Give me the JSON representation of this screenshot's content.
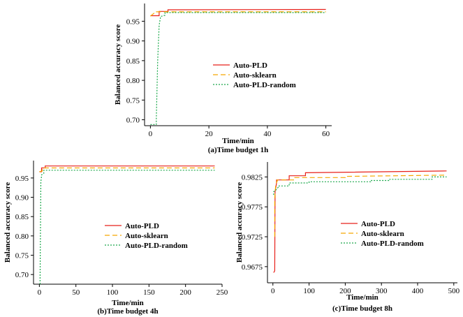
{
  "colors": {
    "Auto-PLD": "#e8201a",
    "Auto-sklearn": "#f5a800",
    "Auto-PLD-random": "#1aa84a"
  },
  "chart_data": [
    {
      "type": "line",
      "caption": "(a)Time budget 1h",
      "xlabel": "Time/min",
      "ylabel": "Balanced accuracy score",
      "xlim": [
        -2,
        62
      ],
      "ylim": [
        0.685,
        0.995
      ],
      "xticks": [
        0,
        20,
        40,
        60
      ],
      "yticks": [
        0.7,
        0.75,
        0.8,
        0.85,
        0.9,
        0.95
      ],
      "ytick_labels": [
        "0.70",
        "0.75",
        "0.80",
        "0.85",
        "0.90",
        "0.95"
      ],
      "legend": [
        "Auto-PLD",
        "Auto-sklearn",
        "Auto-PLD-random"
      ],
      "series": [
        {
          "name": "Auto-PLD",
          "style": "solid",
          "x": [
            0,
            3,
            3,
            6,
            6,
            60
          ],
          "y": [
            0.964,
            0.964,
            0.975,
            0.975,
            0.979,
            0.98
          ]
        },
        {
          "name": "Auto-sklearn",
          "style": "dashed",
          "x": [
            0,
            1.5,
            1.5,
            60
          ],
          "y": [
            0.963,
            0.972,
            0.974,
            0.974
          ]
        },
        {
          "name": "Auto-PLD-random",
          "style": "dotted",
          "x": [
            0,
            2,
            2,
            2.5,
            3,
            3.5,
            5,
            5,
            60
          ],
          "y": [
            0.688,
            0.688,
            0.7,
            0.85,
            0.94,
            0.962,
            0.965,
            0.972,
            0.972
          ]
        }
      ]
    },
    {
      "type": "line",
      "caption": "(b)Time budget 4h",
      "xlabel": "Time/min",
      "ylabel": "Balanced accuracy score",
      "xlim": [
        -8,
        250
      ],
      "ylim": [
        0.675,
        0.995
      ],
      "xticks": [
        0,
        50,
        100,
        150,
        200,
        250
      ],
      "yticks": [
        0.7,
        0.75,
        0.8,
        0.85,
        0.9,
        0.95
      ],
      "ytick_labels": [
        "0.70",
        "0.75",
        "0.80",
        "0.85",
        "0.90",
        "0.95"
      ],
      "legend": [
        "Auto-PLD",
        "Auto-sklearn",
        "Auto-PLD-random"
      ],
      "series": [
        {
          "name": "Auto-PLD",
          "style": "solid",
          "x": [
            0,
            3,
            3,
            8,
            8,
            240
          ],
          "y": [
            0.966,
            0.966,
            0.976,
            0.976,
            0.981,
            0.981
          ]
        },
        {
          "name": "Auto-sklearn",
          "style": "dashed",
          "x": [
            0,
            4,
            4,
            240
          ],
          "y": [
            0.966,
            0.968,
            0.976,
            0.976
          ]
        },
        {
          "name": "Auto-PLD-random",
          "style": "dotted",
          "x": [
            1,
            1,
            2,
            3,
            3,
            6,
            6,
            240
          ],
          "y": [
            0.675,
            0.69,
            0.94,
            0.955,
            0.958,
            0.962,
            0.97,
            0.97
          ]
        }
      ]
    },
    {
      "type": "line",
      "caption": "(c)Time budget 8h",
      "xlabel": "Time/min",
      "ylabel": "Balanced accuracy score",
      "xlim": [
        -15,
        510
      ],
      "ylim": [
        0.9648,
        0.985
      ],
      "xticks": [
        0,
        100,
        200,
        300,
        400,
        500
      ],
      "yticks": [
        0.9675,
        0.9725,
        0.9775,
        0.9825
      ],
      "ytick_labels": [
        "0.9675",
        "0.9725",
        "0.9775",
        "0.9825"
      ],
      "legend": [
        "Auto-PLD",
        "Auto-sklearn",
        "Auto-PLD-random"
      ],
      "series": [
        {
          "name": "Auto-PLD",
          "style": "solid",
          "x": [
            2,
            5,
            6,
            10,
            10,
            45,
            45,
            90,
            90,
            480
          ],
          "y": [
            0.9665,
            0.9668,
            0.98,
            0.9815,
            0.982,
            0.982,
            0.9827,
            0.9827,
            0.9832,
            0.9835
          ]
        },
        {
          "name": "Auto-sklearn",
          "style": "dashed",
          "x": [
            5,
            5,
            8,
            12,
            12,
            60,
            60,
            200,
            200,
            480
          ],
          "y": [
            0.9725,
            0.979,
            0.9813,
            0.9818,
            0.982,
            0.982,
            0.9824,
            0.9824,
            0.9826,
            0.9828
          ]
        },
        {
          "name": "Auto-PLD-random",
          "style": "dotted",
          "x": [
            2,
            2,
            8,
            15,
            15,
            45,
            45,
            100,
            100,
            270,
            270,
            320,
            320,
            440,
            440,
            480
          ],
          "y": [
            0.9795,
            0.98,
            0.9803,
            0.9808,
            0.981,
            0.981,
            0.9815,
            0.9815,
            0.9817,
            0.9817,
            0.9819,
            0.9819,
            0.9821,
            0.9821,
            0.9825,
            0.9825
          ]
        }
      ]
    }
  ]
}
